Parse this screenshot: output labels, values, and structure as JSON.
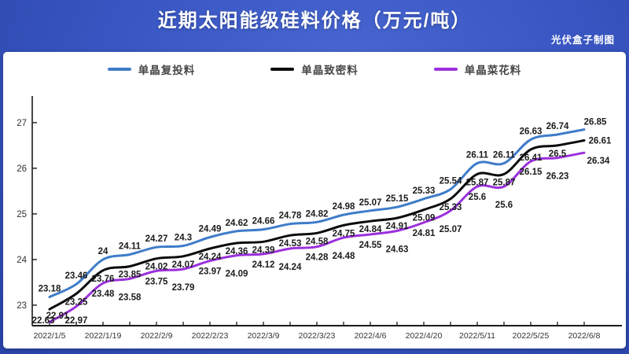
{
  "page": {
    "title": "近期太阳能级硅料价格（万元/吨）",
    "credit": "光伏盒子制图"
  },
  "legend": [
    {
      "label": "单晶复投料",
      "color": "#3e7cc9"
    },
    {
      "label": "单晶致密料",
      "color": "#0b0b0b"
    },
    {
      "label": "单晶菜花料",
      "color": "#9b30dc"
    }
  ],
  "chart_data": {
    "type": "line",
    "title": "近期太阳能级硅料价格（万元/吨）",
    "credit": "光伏盒子制图",
    "x_tick_labels": [
      "2022/1/5",
      "2022/1/19",
      "2022/2/9",
      "2022/2/23",
      "2022/3/9",
      "2022/3/23",
      "2022/4/6",
      "2022/4/20",
      "2022/5/11",
      "2022/5/25",
      "2022/6/8"
    ],
    "x_ticks_on_every_other_point": true,
    "n_points": 21,
    "y_ticks": [
      23,
      24,
      25,
      26,
      27
    ],
    "ylim": [
      22.55,
      27.55
    ],
    "grid": false,
    "legend_position": "top",
    "data_labels": true,
    "series": [
      {
        "name": "单晶复投料",
        "color": "#3e7cc9",
        "values": [
          23.18,
          23.46,
          24,
          24.11,
          24.27,
          24.3,
          24.49,
          24.62,
          24.66,
          24.78,
          24.82,
          24.98,
          25.07,
          25.15,
          25.33,
          25.54,
          26.11,
          26.11,
          26.63,
          26.74,
          26.85
        ]
      },
      {
        "name": "单晶致密料",
        "color": "#0b0b0b",
        "values": [
          22.91,
          23.25,
          23.76,
          23.85,
          24.02,
          24.07,
          24.24,
          24.36,
          24.39,
          24.53,
          24.58,
          24.75,
          24.84,
          24.91,
          25.09,
          25.33,
          25.87,
          25.87,
          26.41,
          26.5,
          26.61
        ]
      },
      {
        "name": "单晶菜花料",
        "color": "#9b30dc",
        "values": [
          22.63,
          22.97,
          23.48,
          23.58,
          23.75,
          23.79,
          23.97,
          24.09,
          24.12,
          24.24,
          24.28,
          24.48,
          24.55,
          24.63,
          24.81,
          25.07,
          25.6,
          25.6,
          26.15,
          26.23,
          26.34
        ]
      }
    ]
  }
}
